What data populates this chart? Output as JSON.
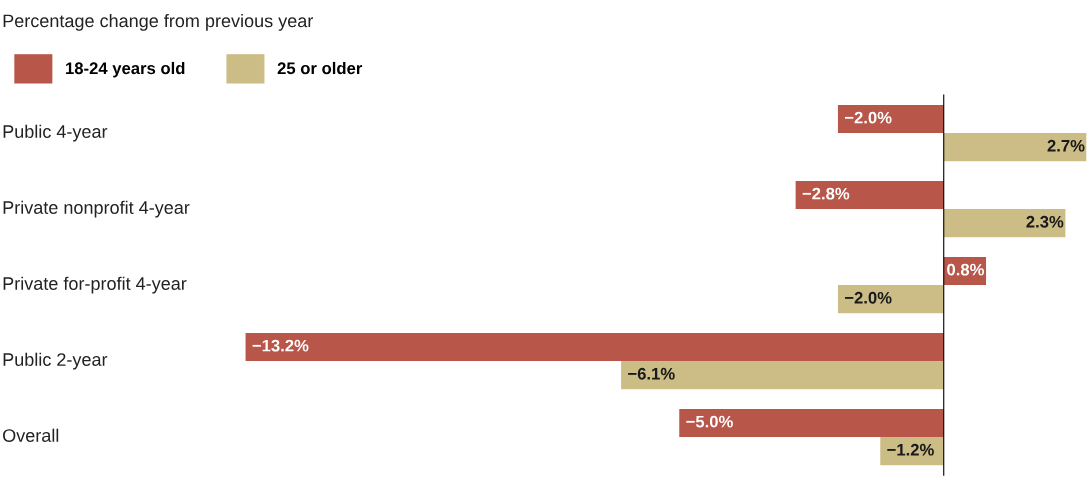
{
  "chart_data": {
    "type": "bar",
    "orientation": "horizontal",
    "title": "Percentage change from previous year",
    "categories": [
      "Public 4-year",
      "Private nonprofit 4-year",
      "Private for-profit 4-year",
      "Public 2-year",
      "Overall"
    ],
    "series": [
      {
        "name": "18-24 years old",
        "color": "#b9564a",
        "values": [
          -2.0,
          -2.8,
          0.8,
          -13.2,
          -5.0
        ],
        "value_labels": [
          "−2.0%",
          "−2.8%",
          "0.8%",
          "−13.2%",
          "−5.0%"
        ]
      },
      {
        "name": "25 or older",
        "color": "#cbbd85",
        "values": [
          2.7,
          2.3,
          -2.0,
          -6.1,
          -1.2
        ],
        "value_labels": [
          "2.7%",
          "2.3%",
          "−2.0%",
          "−6.1%",
          "−1.2%"
        ]
      }
    ],
    "legend": "top left"
  }
}
